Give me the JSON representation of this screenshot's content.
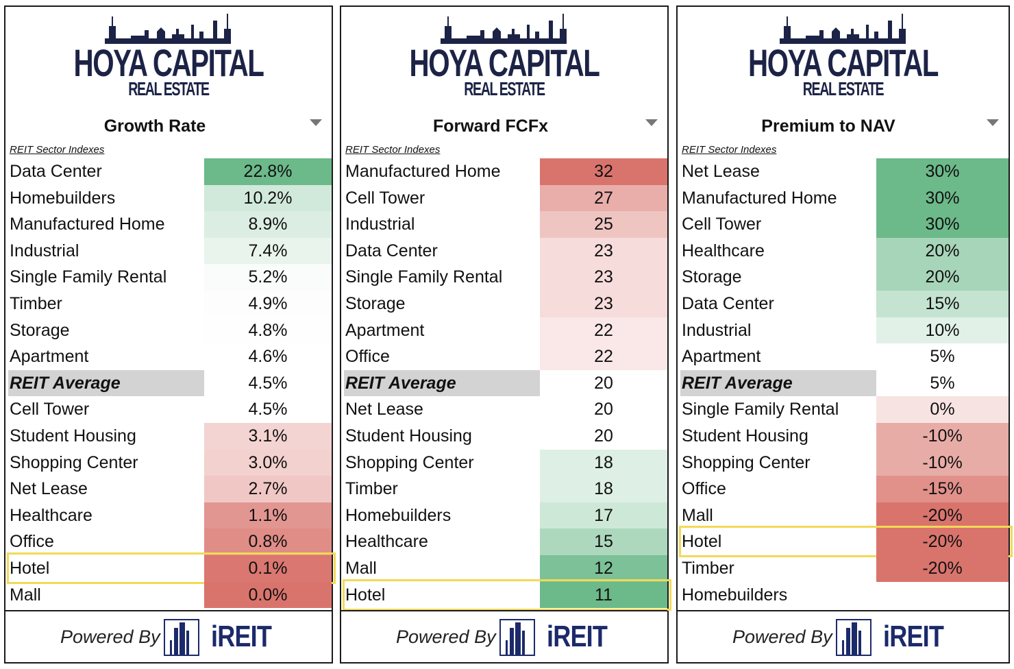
{
  "brand": {
    "line1": "HOYA CAPITAL",
    "line2": "REAL ESTATE"
  },
  "footer": {
    "powered_by": "Powered By",
    "ireit": "iREIT"
  },
  "subtitle": "REIT Sector Indexes",
  "colors": {
    "green_strong": "#6cb98a",
    "red_strong": "#d9746d",
    "highlight": "#f2da55",
    "avg_bg": "#d3d3d3"
  },
  "chart_data": [
    {
      "type": "table",
      "title": "Growth Rate",
      "highlight": "Hotel",
      "average_label": "REIT Average",
      "rows": [
        {
          "label": "Data Center",
          "display": "22.8%",
          "value": 22.8
        },
        {
          "label": "Homebuilders",
          "display": "10.2%",
          "value": 10.2
        },
        {
          "label": "Manufactured Home",
          "display": "8.9%",
          "value": 8.9
        },
        {
          "label": "Industrial",
          "display": "7.4%",
          "value": 7.4
        },
        {
          "label": "Single Family Rental",
          "display": "5.2%",
          "value": 5.2
        },
        {
          "label": "Timber",
          "display": "4.9%",
          "value": 4.9
        },
        {
          "label": "Storage",
          "display": "4.8%",
          "value": 4.8
        },
        {
          "label": "Apartment",
          "display": "4.6%",
          "value": 4.6
        },
        {
          "label": "REIT Average",
          "display": "4.5%",
          "value": 4.5
        },
        {
          "label": "Cell Tower",
          "display": "4.5%",
          "value": 4.5
        },
        {
          "label": "Student Housing",
          "display": "3.1%",
          "value": 3.1
        },
        {
          "label": "Shopping Center",
          "display": "3.0%",
          "value": 3.0
        },
        {
          "label": "Net Lease",
          "display": "2.7%",
          "value": 2.7
        },
        {
          "label": "Healthcare",
          "display": "1.1%",
          "value": 1.1
        },
        {
          "label": "Office",
          "display": "0.8%",
          "value": 0.8
        },
        {
          "label": "Hotel",
          "display": "0.1%",
          "value": 0.1
        },
        {
          "label": "Mall",
          "display": "0.0%",
          "value": 0.0
        }
      ]
    },
    {
      "type": "table",
      "title": "Forward FCFx",
      "highlight": "Hotel",
      "average_label": "REIT Average",
      "rows": [
        {
          "label": "Manufactured Home",
          "display": "32",
          "value": 32
        },
        {
          "label": "Cell Tower",
          "display": "27",
          "value": 27
        },
        {
          "label": "Industrial",
          "display": "25",
          "value": 25
        },
        {
          "label": "Data Center",
          "display": "23",
          "value": 23
        },
        {
          "label": "Single Family Rental",
          "display": "23",
          "value": 23
        },
        {
          "label": "Storage",
          "display": "23",
          "value": 23
        },
        {
          "label": "Apartment",
          "display": "22",
          "value": 22
        },
        {
          "label": "Office",
          "display": "22",
          "value": 22
        },
        {
          "label": "REIT Average",
          "display": "20",
          "value": 20
        },
        {
          "label": "Net Lease",
          "display": "20",
          "value": 20
        },
        {
          "label": "Student Housing",
          "display": "20",
          "value": 20
        },
        {
          "label": "Shopping Center",
          "display": "18",
          "value": 18
        },
        {
          "label": "Timber",
          "display": "18",
          "value": 18
        },
        {
          "label": "Homebuilders",
          "display": "17",
          "value": 17
        },
        {
          "label": "Healthcare",
          "display": "15",
          "value": 15
        },
        {
          "label": "Mall",
          "display": "12",
          "value": 12
        },
        {
          "label": "Hotel",
          "display": "11",
          "value": 11
        }
      ]
    },
    {
      "type": "table",
      "title": "Premium to NAV",
      "highlight": "Hotel",
      "average_label": "REIT Average",
      "rows": [
        {
          "label": "Net Lease",
          "display": "30%",
          "value": 30
        },
        {
          "label": "Manufactured Home",
          "display": "30%",
          "value": 30
        },
        {
          "label": "Cell Tower",
          "display": "30%",
          "value": 30
        },
        {
          "label": "Healthcare",
          "display": "20%",
          "value": 20
        },
        {
          "label": "Storage",
          "display": "20%",
          "value": 20
        },
        {
          "label": "Data Center",
          "display": "15%",
          "value": 15
        },
        {
          "label": "Industrial",
          "display": "10%",
          "value": 10
        },
        {
          "label": "Apartment",
          "display": "5%",
          "value": 5
        },
        {
          "label": "REIT Average",
          "display": "5%",
          "value": 5
        },
        {
          "label": "Single Family Rental",
          "display": "0%",
          "value": 0
        },
        {
          "label": "Student Housing",
          "display": "-10%",
          "value": -10
        },
        {
          "label": "Shopping Center",
          "display": "-10%",
          "value": -10
        },
        {
          "label": "Office",
          "display": "-15%",
          "value": -15
        },
        {
          "label": "Mall",
          "display": "-20%",
          "value": -20
        },
        {
          "label": "Hotel",
          "display": "-20%",
          "value": -20
        },
        {
          "label": "Timber",
          "display": "-20%",
          "value": -20
        },
        {
          "label": "Homebuilders",
          "display": "",
          "value": null
        }
      ]
    }
  ]
}
